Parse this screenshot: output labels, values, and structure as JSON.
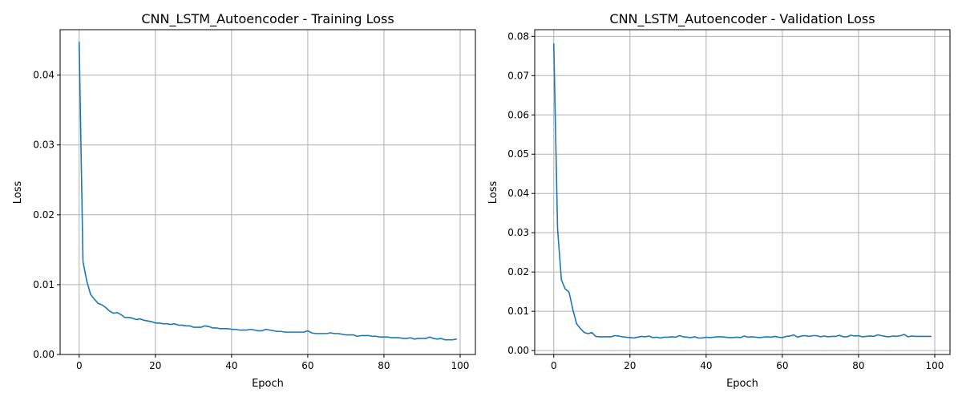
{
  "chart_data": [
    {
      "type": "line",
      "title": "CNN_LSTM_Autoencoder - Training Loss",
      "xlabel": "Epoch",
      "ylabel": "Loss",
      "xlim": [
        -5,
        104
      ],
      "ylim": [
        0.0,
        0.0465
      ],
      "xticks": [
        0,
        20,
        40,
        60,
        80,
        100
      ],
      "yticks": [
        0.0,
        0.01,
        0.02,
        0.03,
        0.04
      ],
      "ytick_labels": [
        "0.00",
        "0.01",
        "0.02",
        "0.03",
        "0.04"
      ],
      "grid": true,
      "series": [
        {
          "color": "#1f77b4",
          "x": [
            0,
            1,
            2,
            3,
            4,
            5,
            6,
            7,
            8,
            9,
            10,
            11,
            12,
            13,
            14,
            15,
            16,
            17,
            18,
            19,
            20,
            21,
            22,
            23,
            24,
            25,
            26,
            27,
            28,
            29,
            30,
            31,
            32,
            33,
            34,
            35,
            36,
            37,
            38,
            39,
            40,
            41,
            42,
            43,
            44,
            45,
            46,
            47,
            48,
            49,
            50,
            51,
            52,
            53,
            54,
            55,
            56,
            57,
            58,
            59,
            60,
            61,
            62,
            63,
            64,
            65,
            66,
            67,
            68,
            69,
            70,
            71,
            72,
            73,
            74,
            75,
            76,
            77,
            78,
            79,
            80,
            81,
            82,
            83,
            84,
            85,
            86,
            87,
            88,
            89,
            90,
            91,
            92,
            93,
            94,
            95,
            96,
            97,
            98,
            99
          ],
          "values": [
            0.0447,
            0.0133,
            0.0105,
            0.0086,
            0.0079,
            0.0073,
            0.0071,
            0.0067,
            0.0062,
            0.0059,
            0.006,
            0.0057,
            0.0053,
            0.0053,
            0.0052,
            0.005,
            0.0051,
            0.0049,
            0.0048,
            0.0047,
            0.0045,
            0.0045,
            0.0044,
            0.0044,
            0.0043,
            0.0044,
            0.0042,
            0.0042,
            0.0041,
            0.0041,
            0.0039,
            0.0039,
            0.0039,
            0.0041,
            0.004,
            0.0038,
            0.0038,
            0.0037,
            0.0037,
            0.0037,
            0.0036,
            0.0036,
            0.0035,
            0.0035,
            0.0035,
            0.0036,
            0.0035,
            0.0034,
            0.0034,
            0.0036,
            0.0035,
            0.0034,
            0.0033,
            0.0033,
            0.0032,
            0.0032,
            0.0032,
            0.0032,
            0.0032,
            0.0032,
            0.0034,
            0.0031,
            0.003,
            0.003,
            0.003,
            0.003,
            0.0031,
            0.003,
            0.003,
            0.0029,
            0.0028,
            0.0028,
            0.0028,
            0.0026,
            0.0027,
            0.0027,
            0.0027,
            0.0026,
            0.0026,
            0.0025,
            0.0025,
            0.0025,
            0.0024,
            0.0024,
            0.0024,
            0.0023,
            0.0023,
            0.0024,
            0.0022,
            0.0023,
            0.0023,
            0.0023,
            0.0025,
            0.0023,
            0.0022,
            0.0023,
            0.0021,
            0.0021,
            0.0021,
            0.0022
          ]
        }
      ]
    },
    {
      "type": "line",
      "title": "CNN_LSTM_Autoencoder - Validation Loss",
      "xlabel": "Epoch",
      "ylabel": "Loss",
      "xlim": [
        -5,
        104
      ],
      "ylim": [
        -0.001,
        0.0817
      ],
      "xticks": [
        0,
        20,
        40,
        60,
        80,
        100
      ],
      "yticks": [
        0.0,
        0.01,
        0.02,
        0.03,
        0.04,
        0.05,
        0.06,
        0.07,
        0.08
      ],
      "ytick_labels": [
        "0.00",
        "0.01",
        "0.02",
        "0.03",
        "0.04",
        "0.05",
        "0.06",
        "0.07",
        "0.08"
      ],
      "grid": true,
      "series": [
        {
          "color": "#1f77b4",
          "x": [
            0,
            1,
            2,
            3,
            4,
            5,
            6,
            7,
            8,
            9,
            10,
            11,
            12,
            13,
            14,
            15,
            16,
            17,
            18,
            19,
            20,
            21,
            22,
            23,
            24,
            25,
            26,
            27,
            28,
            29,
            30,
            31,
            32,
            33,
            34,
            35,
            36,
            37,
            38,
            39,
            40,
            41,
            42,
            43,
            44,
            45,
            46,
            47,
            48,
            49,
            50,
            51,
            52,
            53,
            54,
            55,
            56,
            57,
            58,
            59,
            60,
            61,
            62,
            63,
            64,
            65,
            66,
            67,
            68,
            69,
            70,
            71,
            72,
            73,
            74,
            75,
            76,
            77,
            78,
            79,
            80,
            81,
            82,
            83,
            84,
            85,
            86,
            87,
            88,
            89,
            90,
            91,
            92,
            93,
            94,
            95,
            96,
            97,
            98,
            99
          ],
          "values": [
            0.0781,
            0.031,
            0.018,
            0.0157,
            0.0149,
            0.0105,
            0.0068,
            0.0056,
            0.0046,
            0.0043,
            0.0046,
            0.0036,
            0.0035,
            0.0035,
            0.0035,
            0.0035,
            0.0038,
            0.0037,
            0.0035,
            0.0034,
            0.0033,
            0.0032,
            0.0034,
            0.0036,
            0.0035,
            0.0037,
            0.0033,
            0.0034,
            0.0032,
            0.0034,
            0.0034,
            0.0035,
            0.0034,
            0.0038,
            0.0035,
            0.0034,
            0.0033,
            0.0035,
            0.0032,
            0.0032,
            0.0034,
            0.0033,
            0.0034,
            0.0035,
            0.0035,
            0.0034,
            0.0033,
            0.0033,
            0.0034,
            0.0033,
            0.0037,
            0.0034,
            0.0035,
            0.0034,
            0.0033,
            0.0034,
            0.0035,
            0.0034,
            0.0036,
            0.0034,
            0.0033,
            0.0036,
            0.0037,
            0.004,
            0.0034,
            0.0037,
            0.0038,
            0.0036,
            0.0038,
            0.0038,
            0.0035,
            0.0037,
            0.0035,
            0.0036,
            0.0036,
            0.0039,
            0.0035,
            0.0035,
            0.0039,
            0.0037,
            0.0038,
            0.0035,
            0.0036,
            0.0037,
            0.0036,
            0.004,
            0.0038,
            0.0036,
            0.0035,
            0.0037,
            0.0036,
            0.0038,
            0.0041,
            0.0035,
            0.0037,
            0.0036,
            0.0036,
            0.0036,
            0.0036,
            0.0036
          ]
        }
      ]
    }
  ]
}
